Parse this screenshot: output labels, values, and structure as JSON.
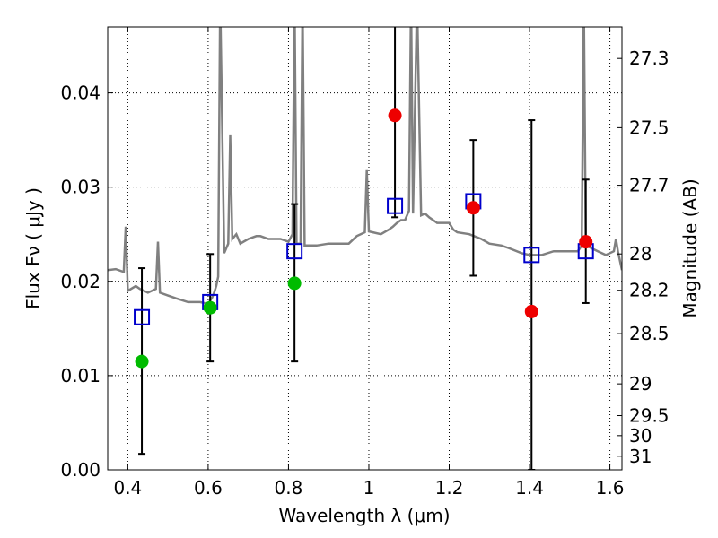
{
  "chart_data": {
    "type": "scatter",
    "xlabel": "Wavelength  λ (μm)",
    "ylabel": "Flux  Fν  ( μJy )",
    "y2label": "Magnitude (AB)",
    "xlim": [
      0.35,
      1.63
    ],
    "ylim": [
      0.0,
      0.047
    ],
    "grid": true,
    "x_ticks": [
      {
        "value": 0.4,
        "label": "0.4"
      },
      {
        "value": 0.6,
        "label": "0.6"
      },
      {
        "value": 0.8,
        "label": "0.8"
      },
      {
        "value": 1.0,
        "label": "1"
      },
      {
        "value": 1.2,
        "label": "1.2"
      },
      {
        "value": 1.4,
        "label": "1.4"
      },
      {
        "value": 1.6,
        "label": "1.6"
      }
    ],
    "y_ticks": [
      {
        "value": 0.0,
        "label": "0.00"
      },
      {
        "value": 0.01,
        "label": "0.01"
      },
      {
        "value": 0.02,
        "label": "0.02"
      },
      {
        "value": 0.03,
        "label": "0.03"
      },
      {
        "value": 0.04,
        "label": "0.04"
      }
    ],
    "y2_ticks": [
      {
        "value": 27.3,
        "label": "27.3"
      },
      {
        "value": 27.5,
        "label": "27.5"
      },
      {
        "value": 27.7,
        "label": "27.7"
      },
      {
        "value": 28.0,
        "label": "28"
      },
      {
        "value": 28.2,
        "label": "28.2"
      },
      {
        "value": 28.5,
        "label": "28.5"
      },
      {
        "value": 29.0,
        "label": "29"
      },
      {
        "value": 29.5,
        "label": "29.5"
      },
      {
        "value": 30.0,
        "label": "30"
      },
      {
        "value": 31.0,
        "label": "31"
      }
    ],
    "model_spectrum": {
      "color": "#808080",
      "x": [
        0.35,
        0.37,
        0.39,
        0.395,
        0.4,
        0.42,
        0.43,
        0.45,
        0.47,
        0.475,
        0.48,
        0.5,
        0.52,
        0.55,
        0.58,
        0.6,
        0.61,
        0.615,
        0.62,
        0.625,
        0.63,
        0.64,
        0.65,
        0.655,
        0.66,
        0.67,
        0.68,
        0.7,
        0.72,
        0.73,
        0.75,
        0.78,
        0.8,
        0.81,
        0.815,
        0.82,
        0.83,
        0.835,
        0.84,
        0.85,
        0.87,
        0.9,
        0.93,
        0.95,
        0.97,
        0.99,
        0.995,
        1.0,
        1.01,
        1.03,
        1.05,
        1.06,
        1.07,
        1.08,
        1.09,
        1.1,
        1.105,
        1.11,
        1.12,
        1.13,
        1.14,
        1.15,
        1.17,
        1.19,
        1.2,
        1.21,
        1.22,
        1.25,
        1.28,
        1.3,
        1.33,
        1.35,
        1.38,
        1.4,
        1.43,
        1.46,
        1.49,
        1.52,
        1.53,
        1.535,
        1.54,
        1.55,
        1.57,
        1.59,
        1.61,
        1.615,
        1.62,
        1.63
      ],
      "y": [
        0.0212,
        0.0213,
        0.021,
        0.0258,
        0.019,
        0.0195,
        0.0192,
        0.0188,
        0.0192,
        0.0242,
        0.0188,
        0.0185,
        0.0182,
        0.0178,
        0.0178,
        0.0176,
        0.0183,
        0.0188,
        0.0195,
        0.0205,
        0.05,
        0.023,
        0.024,
        0.0355,
        0.0245,
        0.025,
        0.024,
        0.0245,
        0.0248,
        0.0248,
        0.0245,
        0.0245,
        0.0242,
        0.025,
        0.05,
        0.024,
        0.024,
        0.05,
        0.0238,
        0.0238,
        0.0238,
        0.024,
        0.024,
        0.024,
        0.0248,
        0.0252,
        0.0318,
        0.0253,
        0.0252,
        0.025,
        0.0255,
        0.0258,
        0.0262,
        0.0265,
        0.0265,
        0.0275,
        0.05,
        0.0272,
        0.05,
        0.027,
        0.0272,
        0.0268,
        0.0262,
        0.0262,
        0.0262,
        0.0255,
        0.0252,
        0.025,
        0.0245,
        0.024,
        0.0238,
        0.0235,
        0.023,
        0.0228,
        0.0228,
        0.0232,
        0.0232,
        0.0232,
        0.0238,
        0.05,
        0.0238,
        0.0236,
        0.0232,
        0.0228,
        0.0232,
        0.0245,
        0.0232,
        0.0212
      ]
    },
    "series": [
      {
        "marker": "open-square",
        "color": "#0000cc",
        "x": [
          0.435,
          0.605,
          0.815,
          1.065,
          1.26,
          1.405,
          1.54
        ],
        "y": [
          0.0162,
          0.0178,
          0.0232,
          0.028,
          0.0285,
          0.0228,
          0.0232
        ]
      },
      {
        "marker": "filled-circle",
        "color": "#00bb00",
        "x": [
          0.435,
          0.605,
          0.815
        ],
        "y": [
          0.0115,
          0.0172,
          0.0198
        ]
      },
      {
        "marker": "filled-circle",
        "color": "#ee0000",
        "x": [
          1.065,
          1.26,
          1.405,
          1.54
        ],
        "y": [
          0.0376,
          0.0278,
          0.0168,
          0.0242
        ]
      }
    ],
    "error_bars": {
      "color": "#000000",
      "x": [
        0.435,
        0.605,
        0.815,
        1.065,
        1.26,
        1.405,
        1.54
      ],
      "low": [
        0.0017,
        0.0115,
        0.0115,
        0.0268,
        0.0206,
        0.0,
        0.0177
      ],
      "high": [
        0.0214,
        0.0229,
        0.0282,
        0.05,
        0.035,
        0.0371,
        0.0308
      ]
    }
  }
}
